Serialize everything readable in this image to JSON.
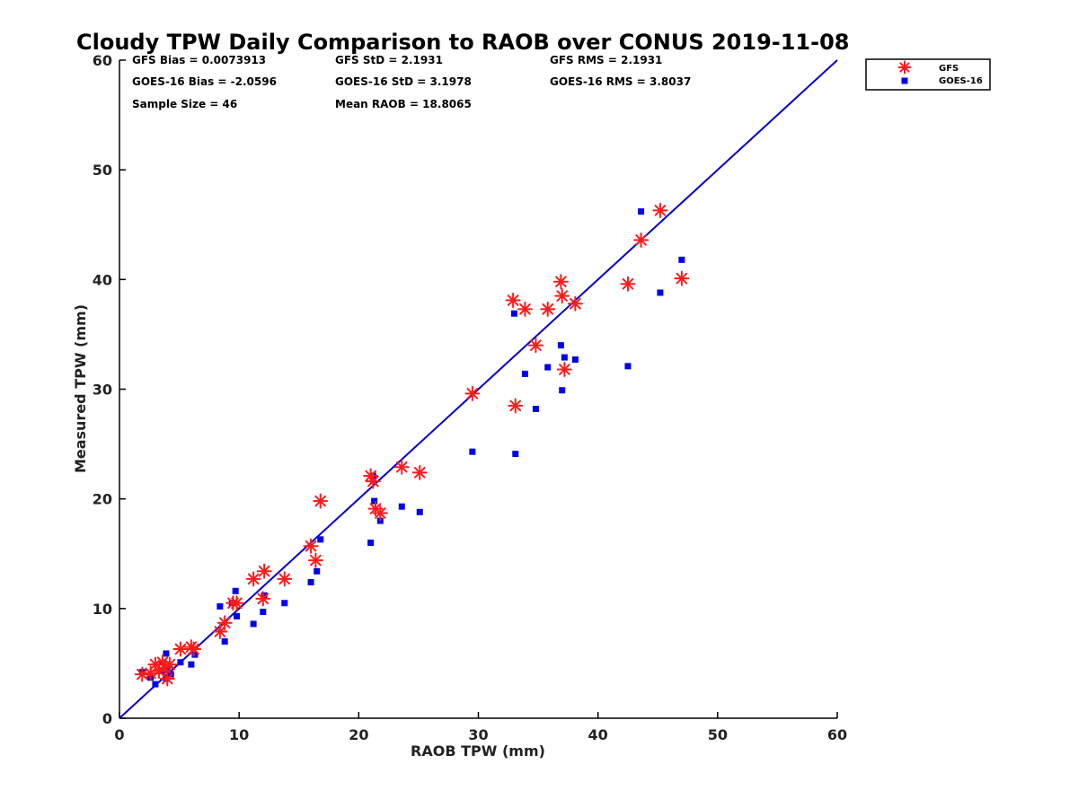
{
  "chart_data": {
    "type": "scatter",
    "title": "Cloudy TPW Daily Comparison to RAOB over CONUS 2019-11-08",
    "xlabel": "RAOB TPW (mm)",
    "ylabel": "Measured TPW (mm)",
    "xlim": [
      0,
      60
    ],
    "ylim": [
      0,
      60
    ],
    "xticks": [
      "0",
      "10",
      "20",
      "30",
      "40",
      "50",
      "60"
    ],
    "yticks": [
      "0",
      "10",
      "20",
      "30",
      "40",
      "50",
      "60"
    ],
    "grid": false,
    "legend_position": "top-right outside",
    "stats": [
      "GFS Bias = 0.0073913",
      "GFS StD = 2.1931",
      "GFS RMS = 2.1931",
      "GOES-16 Bias = -2.0596",
      "GOES-16 StD = 3.1978",
      "GOES-16 RMS = 3.8037",
      "Sample Size = 46",
      "Mean RAOB = 18.8065"
    ],
    "reference_line": {
      "from": [
        0,
        0
      ],
      "to": [
        60,
        60
      ],
      "color": "#0000cc"
    },
    "series": [
      {
        "name": "GFS",
        "marker": "asterisk",
        "color": "#ff1a1a",
        "x": [
          1.9,
          2.6,
          3.0,
          3.3,
          3.6,
          3.8,
          4.0,
          4.2,
          5.1,
          6.0,
          6.2,
          8.4,
          8.8,
          9.5,
          9.8,
          11.2,
          12.0,
          12.1,
          13.8,
          16.0,
          16.4,
          16.8,
          21.0,
          21.2,
          21.4,
          21.8,
          23.6,
          25.1,
          29.5,
          32.9,
          33.1,
          33.9,
          34.8,
          35.8,
          36.9,
          37.0,
          37.2,
          38.1,
          42.5,
          43.6,
          45.2,
          47.0
        ],
        "y": [
          4.0,
          4.1,
          4.9,
          4.3,
          5.1,
          4.6,
          3.6,
          4.9,
          6.3,
          6.5,
          6.3,
          7.9,
          8.7,
          10.5,
          10.5,
          12.7,
          10.9,
          13.4,
          12.7,
          15.7,
          14.4,
          19.8,
          22.1,
          21.6,
          19.1,
          18.7,
          22.9,
          22.4,
          29.6,
          38.1,
          28.5,
          37.3,
          34.0,
          37.3,
          39.8,
          38.5,
          31.8,
          37.8,
          39.6,
          43.6,
          46.3,
          40.1
        ]
      },
      {
        "name": "GOES-16",
        "marker": "square",
        "color": "#0000ee",
        "x": [
          1.9,
          2.6,
          3.0,
          3.5,
          3.9,
          3.9,
          4.0,
          4.3,
          5.1,
          6.0,
          6.3,
          8.4,
          8.8,
          9.4,
          9.7,
          9.8,
          11.2,
          12.0,
          12.1,
          13.8,
          16.0,
          16.5,
          16.8,
          21.0,
          21.2,
          21.3,
          21.8,
          23.6,
          25.1,
          29.5,
          33.0,
          33.1,
          33.9,
          34.8,
          35.8,
          36.9,
          37.0,
          37.2,
          38.1,
          42.5,
          43.6,
          45.2,
          47.0
        ],
        "y": [
          4.2,
          3.7,
          3.1,
          4.3,
          5.9,
          3.6,
          4.4,
          4.0,
          5.1,
          4.9,
          5.8,
          10.2,
          7.0,
          10.5,
          11.6,
          9.3,
          8.6,
          9.7,
          11.2,
          10.5,
          12.4,
          13.4,
          16.3,
          16.0,
          22.1,
          19.8,
          18.0,
          19.3,
          18.8,
          24.3,
          36.9,
          24.1,
          31.4,
          28.2,
          32.0,
          34.0,
          29.9,
          32.9,
          32.7,
          32.1,
          46.2,
          38.8,
          41.8
        ]
      }
    ]
  }
}
